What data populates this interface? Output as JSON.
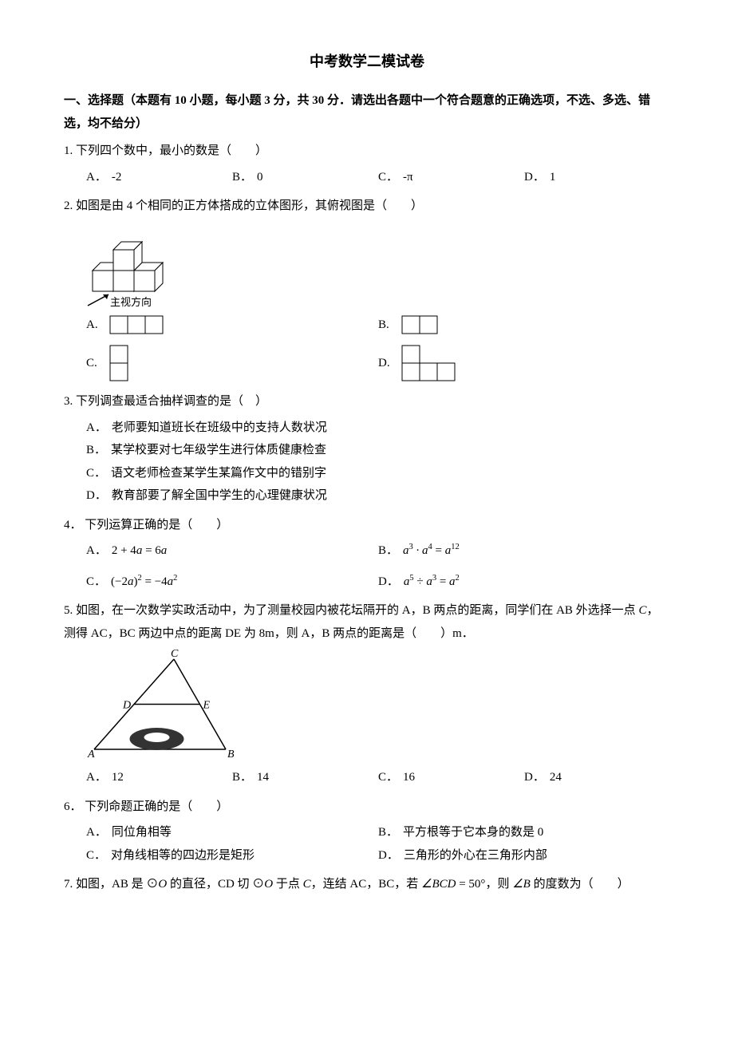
{
  "title": "中考数学二模试卷",
  "section1_head": "一、选择题（本题有 10 小题，每小题 3 分，共 30 分．请选出各题中一个符合题意的正确选项，不选、多选、错选，均不给分）",
  "q1": {
    "num": "1.",
    "stem": "下列四个数中，最小的数是（　　）",
    "A": "-2",
    "B": "0",
    "C": "-π",
    "D": "1"
  },
  "q2": {
    "num": "2.",
    "stem": "如图是由 4 个相同的正方体搭成的立体图形，其俯视图是（　　）",
    "view_label": "主视方向",
    "A": "A.",
    "B": "B.",
    "C": "C.",
    "D": "D.",
    "cube_stroke": "#000000",
    "cube_fill": "#ffffff",
    "opt_stroke": "#000000",
    "opt_fill": "#ffffff",
    "cell": 22
  },
  "q3": {
    "num": "3.",
    "stem": "下列调查最适合抽样调查的是（　）",
    "A": "老师要知道班长在班级中的支持人数状况",
    "B": "某学校要对七年级学生进行体质健康检查",
    "C": "语文老师检查某学生某篇作文中的错别字",
    "D": "教育部要了解全国中学生的心理健康状况"
  },
  "q4": {
    "num": "4．",
    "stem": "下列运算正确的是（　　）",
    "A_html": "<span class='math'><span class='n'>2 + 4</span>a <span class='n'>= 6</span>a</span>",
    "B_html": "<span class='math'>a<sup>3</sup> · a<sup>4</sup> <span class='n'>=</span> a<sup>12</sup></span>",
    "C_html": "<span class='math'><span class='n'>(−2</span>a<span class='n'>)</span><sup>2</sup> <span class='n'>= −4</span>a<sup>2</sup></span>",
    "D_html": "<span class='math'>a<sup>5</sup> <span class='n'>÷</span> a<sup>3</sup> <span class='n'>=</span> a<sup>2</sup></span>"
  },
  "q5": {
    "num": "5.",
    "stem_html": "如图，在一次数学实政活动中，为了测量校园内被花坛隔开的 A，B 两点的距离，同学们在 AB 外选择一点 <span class='math'>C</span>，测得 AC，BC 两边中点的距离 DE 为 <span class='math'><span class='n'>8m</span></span>，则 A，B 两点的距离是（　　）m．",
    "A": "12",
    "B": "14",
    "C": "16",
    "D": "24",
    "labels": {
      "A": "A",
      "B": "B",
      "C": "C",
      "D": "D",
      "E": "E"
    },
    "stroke": "#000000"
  },
  "q6": {
    "num": "6．",
    "stem": "下列命题正确的是（　　）",
    "A": "同位角相等",
    "B": "平方根等于它本身的数是 0",
    "C": "对角线相等的四边形是矩形",
    "D": "三角形的外心在三角形内部"
  },
  "q7": {
    "num": "7.",
    "stem_html": "如图，AB 是 ⊙<span class='math'>O</span> 的直径，CD 切 ⊙<span class='math'>O</span> 于点 <span class='math'>C</span>，连结 AC，BC，若 <span class='math'>∠BCD <span class='n'>= 50°</span></span>，则 <span class='math'>∠B</span> 的度数为（　　）"
  }
}
